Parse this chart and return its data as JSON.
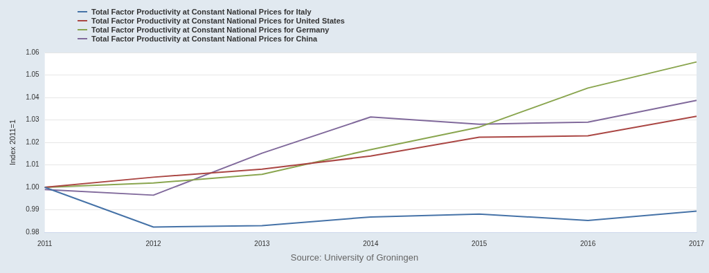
{
  "chart_data": {
    "type": "line",
    "ylabel": "Index 2011=1",
    "categories": [
      "2011",
      "2012",
      "2013",
      "2014",
      "2015",
      "2016",
      "2017"
    ],
    "series": [
      {
        "name": "Total Factor Productivity at Constant National Prices for Italy",
        "color": "#4572a7",
        "values": [
          1.0,
          0.9823,
          0.9829,
          0.9868,
          0.9881,
          0.9852,
          0.9894
        ]
      },
      {
        "name": "Total Factor Productivity at Constant National Prices for United States",
        "color": "#aa4643",
        "values": [
          1.0,
          1.0045,
          1.0081,
          1.0139,
          1.0223,
          1.0229,
          1.0316
        ]
      },
      {
        "name": "Total Factor Productivity at Constant National Prices for Germany",
        "color": "#89a54e",
        "values": [
          1.0,
          1.0019,
          1.0058,
          1.0168,
          1.0268,
          1.0442,
          1.0558
        ]
      },
      {
        "name": "Total Factor Productivity at Constant National Prices for China",
        "color": "#80699b",
        "values": [
          0.999,
          0.9965,
          1.0152,
          1.0313,
          1.0281,
          1.029,
          1.0387
        ]
      }
    ],
    "ylim": [
      0.98,
      1.06
    ],
    "yticks": [
      0.98,
      0.99,
      {
        "value": 1.0,
        "label": "1.00"
      },
      1.01,
      1.02,
      1.03,
      1.04,
      1.05,
      1.06
    ],
    "grid": "y",
    "legend": "top left",
    "marker": "none",
    "line_style": "solid",
    "annotations": [
      "Source: University of Groningen"
    ]
  }
}
